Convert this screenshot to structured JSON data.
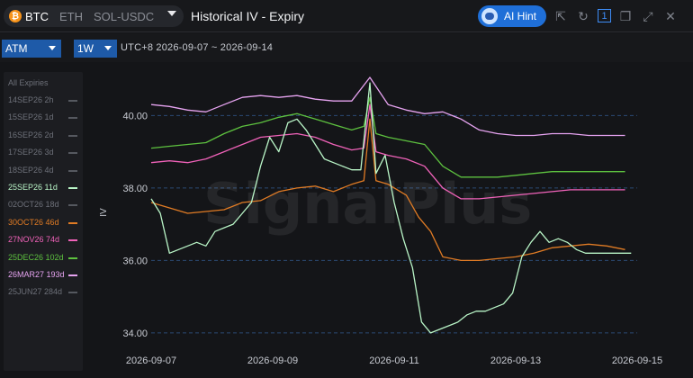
{
  "header": {
    "assets": [
      "BTC",
      "ETH",
      "SOL-USDC"
    ],
    "active_asset": "BTC",
    "title": "Historical IV - Expiry",
    "ai_hint": "AI Hint",
    "window_count": "1"
  },
  "toolbar": {
    "strike_select": "ATM",
    "period_select": "1W",
    "range_label": "UTC+8 2026-09-07 ~ 2026-09-14"
  },
  "legend": {
    "all_label": "All Expiries",
    "items": [
      {
        "label": "14SEP26 2h",
        "color": "#6f7178",
        "active": false
      },
      {
        "label": "15SEP26 1d",
        "color": "#6f7178",
        "active": false
      },
      {
        "label": "16SEP26 2d",
        "color": "#6f7178",
        "active": false
      },
      {
        "label": "17SEP26 3d",
        "color": "#6f7178",
        "active": false
      },
      {
        "label": "18SEP26 4d",
        "color": "#6f7178",
        "active": false
      },
      {
        "label": "25SEP26 11d",
        "color": "#b9f5c7",
        "active": true
      },
      {
        "label": "02OCT26 18d",
        "color": "#6f7178",
        "active": false
      },
      {
        "label": "30OCT26 46d",
        "color": "#e07b24",
        "active": true
      },
      {
        "label": "27NOV26 74d",
        "color": "#f062b9",
        "active": true
      },
      {
        "label": "25DEC26 102d",
        "color": "#5dc13f",
        "active": true
      },
      {
        "label": "26MAR27 193d",
        "color": "#e6a3f0",
        "active": true
      },
      {
        "label": "25JUN27 284d",
        "color": "#6f7178",
        "active": false
      }
    ]
  },
  "chart_data": {
    "type": "line",
    "ylabel": "IV",
    "ylim": [
      33.7,
      41.2
    ],
    "yticks": [
      "34.00",
      "36.00",
      "38.00",
      "40.00"
    ],
    "xticks": [
      "2026-09-07",
      "2026-09-09",
      "2026-09-11",
      "2026-09-13",
      "2026-09-15"
    ],
    "watermark": "SignalPlus",
    "series": [
      {
        "name": "26MAR27 193d",
        "color": "#e6a3f0",
        "x": [
          0,
          0.3,
          0.6,
          0.9,
          1.2,
          1.5,
          1.8,
          2.1,
          2.4,
          2.7,
          3.0,
          3.3,
          3.6,
          3.9,
          4.2,
          4.5,
          4.8,
          5.1,
          5.4,
          5.7,
          6.0,
          6.3,
          6.6,
          6.9,
          7.2,
          7.5,
          7.8
        ],
        "y": [
          40.3,
          40.25,
          40.15,
          40.1,
          40.3,
          40.5,
          40.55,
          40.5,
          40.55,
          40.45,
          40.4,
          40.4,
          41.05,
          40.3,
          40.15,
          40.05,
          40.1,
          39.9,
          39.6,
          39.5,
          39.45,
          39.45,
          39.5,
          39.5,
          39.45,
          39.45,
          39.45
        ]
      },
      {
        "name": "25DEC26 102d",
        "color": "#5dc13f",
        "x": [
          0,
          0.3,
          0.6,
          0.9,
          1.2,
          1.5,
          1.8,
          2.1,
          2.4,
          2.7,
          3.0,
          3.3,
          3.5,
          3.6,
          3.7,
          3.9,
          4.2,
          4.5,
          4.8,
          5.1,
          5.4,
          5.7,
          6.0,
          6.3,
          6.6,
          6.9,
          7.2,
          7.5,
          7.8
        ],
        "y": [
          39.1,
          39.15,
          39.2,
          39.25,
          39.5,
          39.7,
          39.8,
          39.95,
          40.05,
          39.9,
          39.75,
          39.6,
          39.7,
          40.5,
          39.5,
          39.4,
          39.3,
          39.2,
          38.6,
          38.3,
          38.3,
          38.3,
          38.35,
          38.4,
          38.45,
          38.45,
          38.45,
          38.45,
          38.45
        ]
      },
      {
        "name": "27NOV26 74d",
        "color": "#f062b9",
        "x": [
          0,
          0.3,
          0.6,
          0.9,
          1.2,
          1.5,
          1.8,
          2.1,
          2.4,
          2.7,
          3.0,
          3.3,
          3.5,
          3.6,
          3.7,
          3.9,
          4.2,
          4.5,
          4.8,
          5.1,
          5.4,
          5.7,
          6.0,
          6.3,
          6.6,
          6.9,
          7.2,
          7.5,
          7.8
        ],
        "y": [
          38.7,
          38.75,
          38.7,
          38.8,
          39.0,
          39.2,
          39.4,
          39.45,
          39.5,
          39.4,
          39.2,
          39.05,
          39.1,
          40.3,
          39.0,
          38.9,
          38.8,
          38.6,
          38.0,
          37.7,
          37.7,
          37.75,
          37.8,
          37.85,
          37.9,
          37.95,
          37.95,
          37.95,
          37.95
        ]
      },
      {
        "name": "30OCT26 46d",
        "color": "#e07b24",
        "x": [
          0,
          0.3,
          0.6,
          0.9,
          1.2,
          1.5,
          1.8,
          2.1,
          2.4,
          2.7,
          3.0,
          3.3,
          3.5,
          3.6,
          3.7,
          3.9,
          4.2,
          4.4,
          4.6,
          4.8,
          5.1,
          5.4,
          5.7,
          6.0,
          6.3,
          6.6,
          6.9,
          7.2,
          7.5,
          7.8
        ],
        "y": [
          37.6,
          37.45,
          37.3,
          37.35,
          37.4,
          37.6,
          37.65,
          37.9,
          38.0,
          38.05,
          37.9,
          38.1,
          38.2,
          39.9,
          38.2,
          38.1,
          37.8,
          37.2,
          36.8,
          36.1,
          36.0,
          36.0,
          36.05,
          36.1,
          36.2,
          36.35,
          36.4,
          36.45,
          36.4,
          36.3
        ]
      },
      {
        "name": "25SEP26 11d",
        "color": "#b9f5c7",
        "x": [
          0,
          0.15,
          0.3,
          0.45,
          0.6,
          0.75,
          0.9,
          1.05,
          1.2,
          1.35,
          1.5,
          1.65,
          1.8,
          1.95,
          2.1,
          2.25,
          2.4,
          2.55,
          2.7,
          2.85,
          3.0,
          3.15,
          3.3,
          3.45,
          3.6,
          3.7,
          3.85,
          4.0,
          4.15,
          4.3,
          4.45,
          4.6,
          4.75,
          4.9,
          5.05,
          5.2,
          5.35,
          5.5,
          5.65,
          5.8,
          5.95,
          6.1,
          6.25,
          6.4,
          6.55,
          6.7,
          6.85,
          7.0,
          7.15,
          7.3,
          7.45,
          7.6,
          7.75,
          7.9
        ],
        "y": [
          37.7,
          37.3,
          36.2,
          36.3,
          36.4,
          36.5,
          36.4,
          36.8,
          36.9,
          37.0,
          37.3,
          37.6,
          38.6,
          39.4,
          39.0,
          39.8,
          39.9,
          39.6,
          39.2,
          38.8,
          38.7,
          38.6,
          38.5,
          38.5,
          40.9,
          38.4,
          38.9,
          37.6,
          36.6,
          35.8,
          34.3,
          34.0,
          34.1,
          34.2,
          34.3,
          34.5,
          34.6,
          34.6,
          34.7,
          34.8,
          35.1,
          36.1,
          36.5,
          36.8,
          36.5,
          36.6,
          36.5,
          36.3,
          36.2,
          36.2,
          36.2,
          36.2,
          36.2,
          36.2
        ]
      }
    ]
  }
}
